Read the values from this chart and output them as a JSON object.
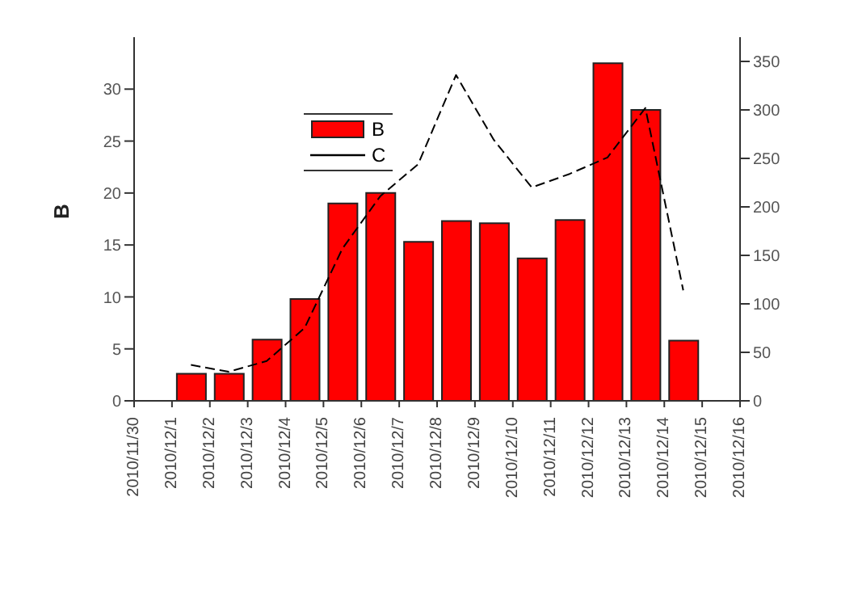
{
  "chart_data": {
    "type": "bar",
    "ylabel": "B",
    "x": [
      "2010-12-01T12:00",
      "2010-12-02T12:00",
      "2010-12-03T12:00",
      "2010-12-04T12:00",
      "2010-12-05T12:00",
      "2010-12-06T12:00",
      "2010-12-07T12:00",
      "2010-12-08T12:00",
      "2010-12-09T12:00",
      "2010-12-10T12:00",
      "2010-12-11T12:00",
      "2010-12-12T12:00",
      "2010-12-13T12:00",
      "2010-12-14T12:00"
    ],
    "series": [
      {
        "name": "B",
        "color": "#ff0000",
        "values": [
          2.6,
          2.6,
          5.9,
          9.8,
          19.0,
          20.0,
          15.3,
          17.3,
          17.1,
          13.7,
          17.4,
          32.5,
          28.0,
          5.8
        ]
      },
      {
        "name": "C",
        "type": "line",
        "axis": "y2",
        "color": "#000000",
        "line_style": "dashed",
        "values": [
          37,
          30,
          41,
          75,
          157,
          211,
          244,
          336,
          269,
          220,
          234,
          251,
          302,
          114
        ]
      }
    ],
    "xlim": [
      "2010-11-30",
      "2010-12-16"
    ],
    "xticks": [
      {
        "value": "2010-11-30",
        "label": "2010/11/30"
      },
      {
        "value": "2010-12-01",
        "label": "2010/12/1"
      },
      {
        "value": "2010-12-02",
        "label": "2010/12/2"
      },
      {
        "value": "2010-12-03",
        "label": "2010/12/3"
      },
      {
        "value": "2010-12-04",
        "label": "2010/12/4"
      },
      {
        "value": "2010-12-05",
        "label": "2010/12/5"
      },
      {
        "value": "2010-12-06",
        "label": "2010/12/6"
      },
      {
        "value": "2010-12-07",
        "label": "2010/12/7"
      },
      {
        "value": "2010-12-08",
        "label": "2010/12/8"
      },
      {
        "value": "2010-12-09",
        "label": "2010/12/9"
      },
      {
        "value": "2010-12-10",
        "label": "2010/12/10"
      },
      {
        "value": "2010-12-11",
        "label": "2010/12/11"
      },
      {
        "value": "2010-12-12",
        "label": "2010/12/12"
      },
      {
        "value": "2010-12-13",
        "label": "2010/12/13"
      },
      {
        "value": "2010-12-14",
        "label": "2010/12/14"
      },
      {
        "value": "2010-12-15",
        "label": "2010/12/15"
      },
      {
        "value": "2010-12-16",
        "label": "2010/12/16"
      }
    ],
    "ylim": [
      0,
      35
    ],
    "yticks": [
      0,
      5,
      10,
      15,
      20,
      25,
      30
    ],
    "y2lim": [
      0,
      375
    ],
    "y2ticks": [
      0,
      50,
      100,
      150,
      200,
      250,
      300,
      350
    ],
    "legend": "top left",
    "grid": false,
    "marker": "none"
  }
}
